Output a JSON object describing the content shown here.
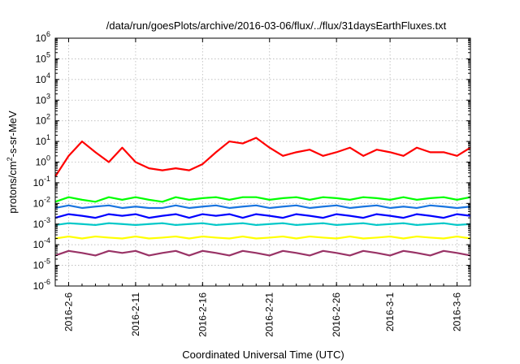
{
  "chart_data": {
    "type": "line",
    "title": "/data/run/goesPlots/archive/2016-03-06/flux/../flux/31daysEarthFluxes.txt",
    "xlabel": "Coordinated Universal Time (UTC)",
    "ylabel": "protons/cm²-s-sr-MeV",
    "yscale": "log",
    "ylim": [
      1e-06,
      1000000.0
    ],
    "xlim": [
      "2016-02-05",
      "2016-03-07"
    ],
    "y_ticks": [
      {
        "base": "10",
        "exp": "-6"
      },
      {
        "base": "10",
        "exp": "-5"
      },
      {
        "base": "10",
        "exp": "-4"
      },
      {
        "base": "10",
        "exp": "-3"
      },
      {
        "base": "10",
        "exp": "-2"
      },
      {
        "base": "10",
        "exp": "-1"
      },
      {
        "base": "10",
        "exp": "0"
      },
      {
        "base": "10",
        "exp": "1"
      },
      {
        "base": "10",
        "exp": "2"
      },
      {
        "base": "10",
        "exp": "3"
      },
      {
        "base": "10",
        "exp": "4"
      },
      {
        "base": "10",
        "exp": "5"
      },
      {
        "base": "10",
        "exp": "6"
      }
    ],
    "x_ticks": [
      "2016-2-6",
      "2016-2-11",
      "2016-2-16",
      "2016-2-21",
      "2016-2-26",
      "2016-3-1",
      "2016-3-6"
    ],
    "grid": true,
    "series": [
      {
        "color": "#ff0000",
        "x": [
          "2016-02-05",
          "2016-02-06",
          "2016-02-07",
          "2016-02-08",
          "2016-02-09",
          "2016-02-10",
          "2016-02-11",
          "2016-02-12",
          "2016-02-13",
          "2016-02-14",
          "2016-02-15",
          "2016-02-16",
          "2016-02-17",
          "2016-02-18",
          "2016-02-19",
          "2016-02-20",
          "2016-02-21",
          "2016-02-22",
          "2016-02-23",
          "2016-02-24",
          "2016-02-25",
          "2016-02-26",
          "2016-02-27",
          "2016-02-28",
          "2016-02-29",
          "2016-03-01",
          "2016-03-02",
          "2016-03-03",
          "2016-03-04",
          "2016-03-05",
          "2016-03-06",
          "2016-03-07"
        ],
        "y": [
          0.2,
          2,
          10,
          3,
          1,
          5,
          1,
          0.5,
          0.4,
          0.5,
          0.4,
          0.8,
          3,
          10,
          8,
          15,
          5,
          2,
          3,
          4,
          2,
          3,
          5,
          2,
          4,
          3,
          2,
          5,
          3,
          3,
          2,
          5
        ]
      },
      {
        "color": "#00ff00",
        "x": [
          "2016-02-05",
          "2016-02-06",
          "2016-02-07",
          "2016-02-08",
          "2016-02-09",
          "2016-02-10",
          "2016-02-11",
          "2016-02-12",
          "2016-02-13",
          "2016-02-14",
          "2016-02-15",
          "2016-02-16",
          "2016-02-17",
          "2016-02-18",
          "2016-02-19",
          "2016-02-20",
          "2016-02-21",
          "2016-02-22",
          "2016-02-23",
          "2016-02-24",
          "2016-02-25",
          "2016-02-26",
          "2016-02-27",
          "2016-02-28",
          "2016-02-29",
          "2016-03-01",
          "2016-03-02",
          "2016-03-03",
          "2016-03-04",
          "2016-03-05",
          "2016-03-06",
          "2016-03-07"
        ],
        "y": [
          0.012,
          0.02,
          0.015,
          0.012,
          0.02,
          0.015,
          0.02,
          0.015,
          0.012,
          0.02,
          0.015,
          0.018,
          0.02,
          0.015,
          0.02,
          0.02,
          0.015,
          0.018,
          0.02,
          0.015,
          0.02,
          0.018,
          0.015,
          0.02,
          0.018,
          0.015,
          0.02,
          0.015,
          0.018,
          0.02,
          0.015,
          0.02
        ]
      },
      {
        "color": "#1a75e0",
        "x": [
          "2016-02-05",
          "2016-02-06",
          "2016-02-07",
          "2016-02-08",
          "2016-02-09",
          "2016-02-10",
          "2016-02-11",
          "2016-02-12",
          "2016-02-13",
          "2016-02-14",
          "2016-02-15",
          "2016-02-16",
          "2016-02-17",
          "2016-02-18",
          "2016-02-19",
          "2016-02-20",
          "2016-02-21",
          "2016-02-22",
          "2016-02-23",
          "2016-02-24",
          "2016-02-25",
          "2016-02-26",
          "2016-02-27",
          "2016-02-28",
          "2016-02-29",
          "2016-03-01",
          "2016-03-02",
          "2016-03-03",
          "2016-03-04",
          "2016-03-05",
          "2016-03-06",
          "2016-03-07"
        ],
        "y": [
          0.006,
          0.008,
          0.006,
          0.007,
          0.008,
          0.006,
          0.007,
          0.006,
          0.006,
          0.008,
          0.006,
          0.007,
          0.008,
          0.006,
          0.007,
          0.008,
          0.006,
          0.007,
          0.008,
          0.006,
          0.007,
          0.008,
          0.006,
          0.007,
          0.008,
          0.006,
          0.007,
          0.006,
          0.008,
          0.007,
          0.006,
          0.007
        ]
      },
      {
        "color": "#0000ff",
        "x": [
          "2016-02-05",
          "2016-02-06",
          "2016-02-07",
          "2016-02-08",
          "2016-02-09",
          "2016-02-10",
          "2016-02-11",
          "2016-02-12",
          "2016-02-13",
          "2016-02-14",
          "2016-02-15",
          "2016-02-16",
          "2016-02-17",
          "2016-02-18",
          "2016-02-19",
          "2016-02-20",
          "2016-02-21",
          "2016-02-22",
          "2016-02-23",
          "2016-02-24",
          "2016-02-25",
          "2016-02-26",
          "2016-02-27",
          "2016-02-28",
          "2016-02-29",
          "2016-03-01",
          "2016-03-02",
          "2016-03-03",
          "2016-03-04",
          "2016-03-05",
          "2016-03-06",
          "2016-03-07"
        ],
        "y": [
          0.002,
          0.003,
          0.0025,
          0.002,
          0.003,
          0.0025,
          0.003,
          0.002,
          0.0025,
          0.003,
          0.002,
          0.003,
          0.0025,
          0.003,
          0.002,
          0.003,
          0.0025,
          0.002,
          0.003,
          0.0025,
          0.002,
          0.003,
          0.0025,
          0.002,
          0.003,
          0.0025,
          0.002,
          0.003,
          0.0025,
          0.002,
          0.003,
          0.0025
        ]
      },
      {
        "color": "#00c8c8",
        "x": [
          "2016-02-05",
          "2016-02-06",
          "2016-02-07",
          "2016-02-08",
          "2016-02-09",
          "2016-02-10",
          "2016-02-11",
          "2016-02-12",
          "2016-02-13",
          "2016-02-14",
          "2016-02-15",
          "2016-02-16",
          "2016-02-17",
          "2016-02-18",
          "2016-02-19",
          "2016-02-20",
          "2016-02-21",
          "2016-02-22",
          "2016-02-23",
          "2016-02-24",
          "2016-02-25",
          "2016-02-26",
          "2016-02-27",
          "2016-02-28",
          "2016-02-29",
          "2016-03-01",
          "2016-03-02",
          "2016-03-03",
          "2016-03-04",
          "2016-03-05",
          "2016-03-06",
          "2016-03-07"
        ],
        "y": [
          0.0009,
          0.0011,
          0.001,
          0.0009,
          0.0011,
          0.001,
          0.0009,
          0.001,
          0.0011,
          0.0009,
          0.001,
          0.0011,
          0.0009,
          0.001,
          0.0011,
          0.0009,
          0.001,
          0.0011,
          0.0009,
          0.001,
          0.0011,
          0.0009,
          0.001,
          0.0011,
          0.0009,
          0.001,
          0.0011,
          0.0009,
          0.001,
          0.0011,
          0.0009,
          0.001
        ]
      },
      {
        "color": "#ffff00",
        "x": [
          "2016-02-05",
          "2016-02-06",
          "2016-02-07",
          "2016-02-08",
          "2016-02-09",
          "2016-02-10",
          "2016-02-11",
          "2016-02-12",
          "2016-02-13",
          "2016-02-14",
          "2016-02-15",
          "2016-02-16",
          "2016-02-17",
          "2016-02-18",
          "2016-02-19",
          "2016-02-20",
          "2016-02-21",
          "2016-02-22",
          "2016-02-23",
          "2016-02-24",
          "2016-02-25",
          "2016-02-26",
          "2016-02-27",
          "2016-02-28",
          "2016-02-29",
          "2016-03-01",
          "2016-03-02",
          "2016-03-03",
          "2016-03-04",
          "2016-03-05",
          "2016-03-06",
          "2016-03-07"
        ],
        "y": [
          0.0002,
          0.00025,
          0.0002,
          0.00025,
          0.00022,
          0.0002,
          0.00025,
          0.0002,
          0.00022,
          0.00025,
          0.0002,
          0.00025,
          0.00022,
          0.0002,
          0.00025,
          0.0002,
          0.00022,
          0.00025,
          0.0002,
          0.00025,
          0.00022,
          0.0002,
          0.00025,
          0.0002,
          0.00022,
          0.00025,
          0.0002,
          0.00025,
          0.00022,
          0.0002,
          0.00025,
          0.0002
        ]
      },
      {
        "color": "#993366",
        "x": [
          "2016-02-05",
          "2016-02-06",
          "2016-02-07",
          "2016-02-08",
          "2016-02-09",
          "2016-02-10",
          "2016-02-11",
          "2016-02-12",
          "2016-02-13",
          "2016-02-14",
          "2016-02-15",
          "2016-02-16",
          "2016-02-17",
          "2016-02-18",
          "2016-02-19",
          "2016-02-20",
          "2016-02-21",
          "2016-02-22",
          "2016-02-23",
          "2016-02-24",
          "2016-02-25",
          "2016-02-26",
          "2016-02-27",
          "2016-02-28",
          "2016-02-29",
          "2016-03-01",
          "2016-03-02",
          "2016-03-03",
          "2016-03-04",
          "2016-03-05",
          "2016-03-06",
          "2016-03-07"
        ],
        "y": [
          3e-05,
          5e-05,
          4e-05,
          3e-05,
          5e-05,
          4e-05,
          5e-05,
          3e-05,
          4e-05,
          5e-05,
          3e-05,
          5e-05,
          4e-05,
          3e-05,
          5e-05,
          4e-05,
          3e-05,
          5e-05,
          4e-05,
          3e-05,
          5e-05,
          4e-05,
          3e-05,
          5e-05,
          4e-05,
          3e-05,
          5e-05,
          4e-05,
          3e-05,
          5e-05,
          4e-05,
          3e-05
        ]
      }
    ]
  }
}
